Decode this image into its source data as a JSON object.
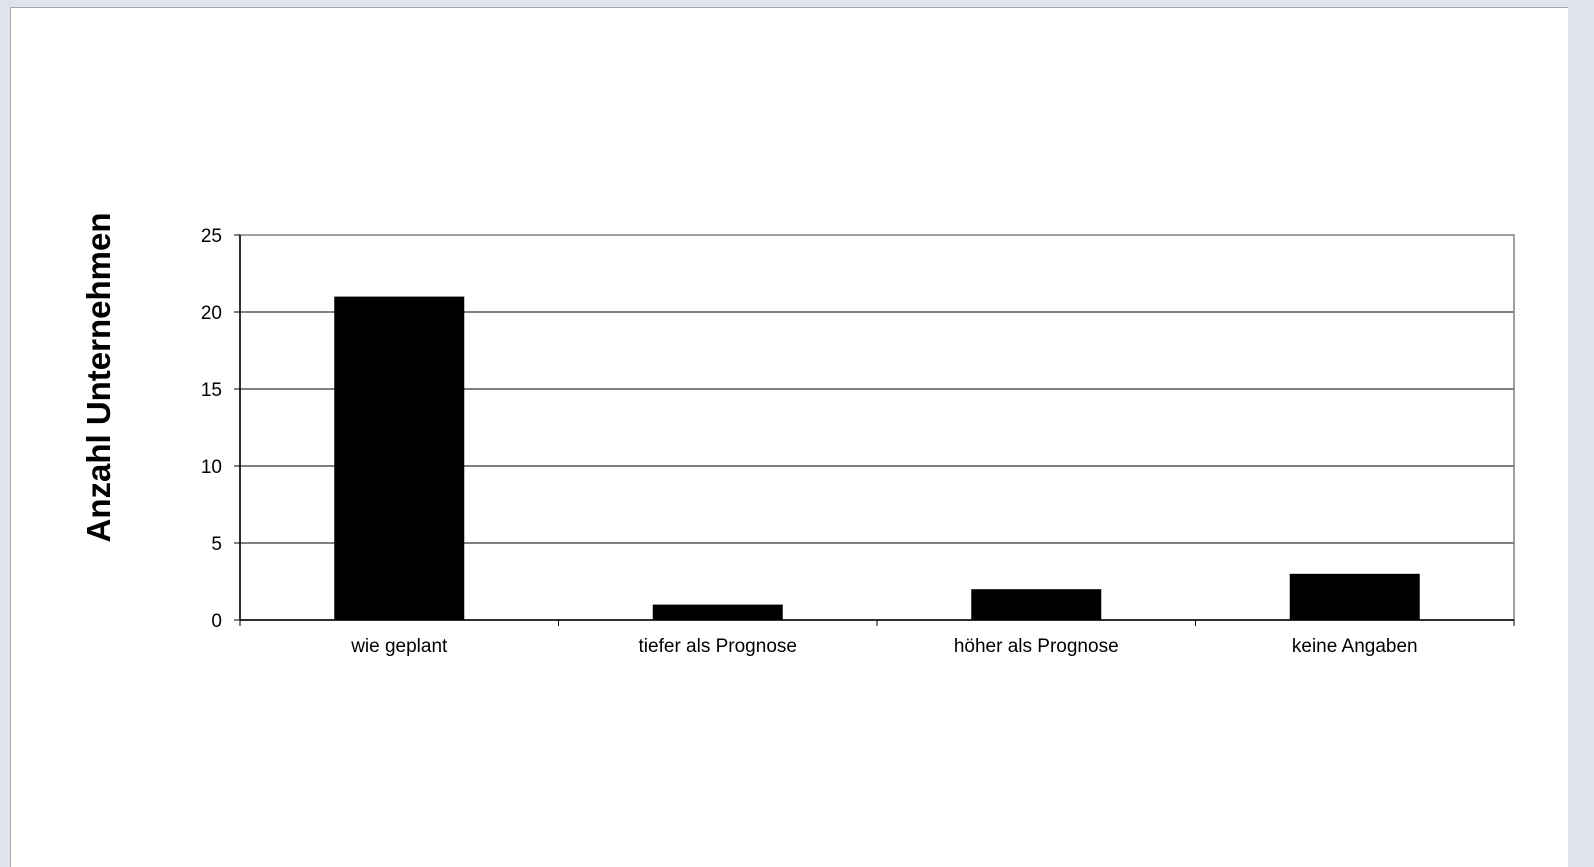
{
  "chart_data": {
    "type": "bar",
    "title": "",
    "xlabel": "",
    "ylabel": "Anzahl Unternehmen",
    "categories": [
      "wie geplant",
      "tiefer als Prognose",
      "höher als Prognose",
      "keine Angaben"
    ],
    "values": [
      21,
      1,
      2,
      3
    ],
    "ylim": [
      0,
      25
    ],
    "yticks": [
      0,
      5,
      10,
      15,
      20,
      25
    ],
    "grid": true,
    "legend": "none",
    "colors": {
      "bar": "#000000",
      "gridline": "#000000",
      "plot_border": "#808080",
      "background": "#ffffff"
    }
  }
}
